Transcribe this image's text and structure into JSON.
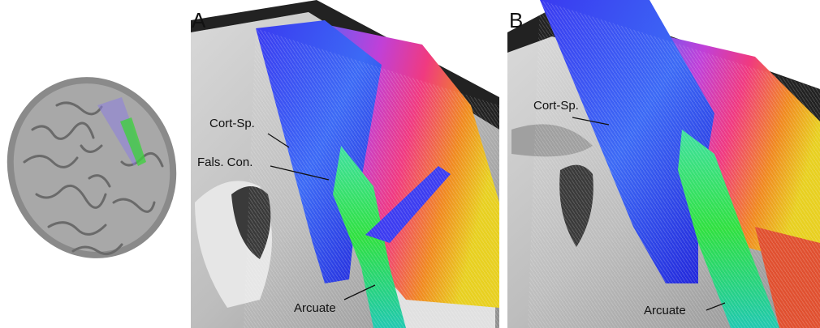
{
  "figure": {
    "panels": [
      {
        "label": "A",
        "annotations": [
          "Cort-Sp.",
          "Fals. Con.",
          "Arcuate"
        ]
      },
      {
        "label": "B",
        "annotations": [
          "Cort-Sp.",
          "Arcuate"
        ]
      }
    ]
  }
}
